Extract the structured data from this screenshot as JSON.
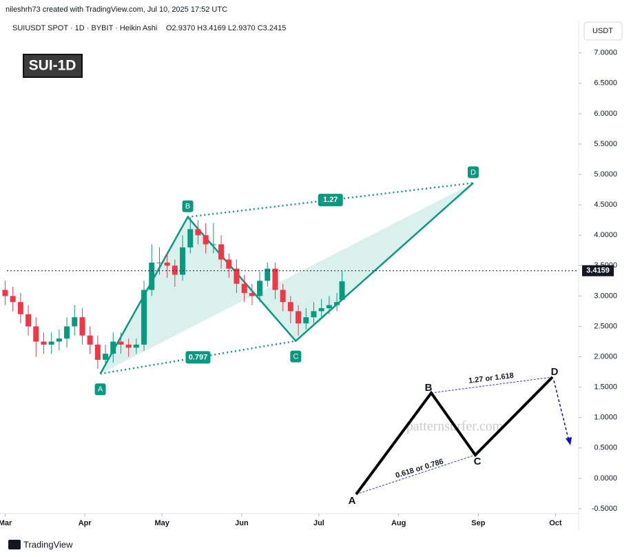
{
  "header": {
    "byline": "nileshrh73 created with TradingView.com, Jul 10, 2025 17:52 UTC",
    "symbol": "SUIUSDT SPOT · 1D · BYBIT · Heikin Ashi",
    "ohlc": "O2.9370 H3.4169 L2.9370 C3.2415",
    "currency": "USDT"
  },
  "chart_data": {
    "type": "candlestick",
    "title": "SUI-1D",
    "up_color": "#089981",
    "down_color": "#f23645",
    "grid": false,
    "x": [
      0,
      3,
      6,
      9,
      12,
      15,
      18,
      21,
      24,
      27,
      30,
      33,
      36,
      39,
      42,
      45,
      48,
      51,
      54,
      57,
      60,
      63,
      66,
      69,
      72,
      75,
      78,
      81,
      84,
      87,
      90,
      93,
      96,
      99,
      102,
      105,
      108,
      111,
      114,
      117,
      120,
      123,
      126,
      129,
      131
    ],
    "open": [
      3.1,
      3.0,
      2.9,
      2.7,
      2.5,
      2.25,
      2.2,
      2.25,
      2.3,
      2.5,
      2.65,
      2.35,
      2.2,
      1.95,
      2.05,
      2.25,
      2.2,
      2.15,
      2.2,
      3.1,
      3.55,
      3.55,
      3.5,
      3.35,
      3.8,
      4.1,
      4.0,
      3.85,
      3.85,
      3.6,
      3.45,
      3.2,
      3.05,
      3.0,
      3.25,
      3.45,
      3.1,
      2.9,
      2.75,
      2.55,
      2.65,
      2.75,
      2.8,
      2.85,
      2.937
    ],
    "high": [
      3.25,
      3.15,
      3.05,
      2.85,
      2.65,
      2.4,
      2.4,
      2.45,
      2.65,
      2.85,
      2.8,
      2.5,
      2.35,
      2.2,
      2.4,
      2.4,
      2.3,
      2.3,
      3.25,
      3.85,
      3.8,
      3.7,
      3.6,
      4.0,
      4.3,
      4.25,
      4.2,
      4.2,
      4.0,
      3.7,
      3.6,
      3.35,
      3.2,
      3.4,
      3.55,
      3.55,
      3.2,
      3.0,
      2.85,
      2.8,
      2.9,
      2.95,
      3.0,
      3.05,
      3.4169
    ],
    "low": [
      2.85,
      2.75,
      2.55,
      2.35,
      2.0,
      2.05,
      2.05,
      2.1,
      2.15,
      2.35,
      2.2,
      2.05,
      1.8,
      1.85,
      1.9,
      2.05,
      2.0,
      2.05,
      2.1,
      3.0,
      3.35,
      3.3,
      3.15,
      3.25,
      3.7,
      3.85,
      3.7,
      3.7,
      3.45,
      3.3,
      3.05,
      2.9,
      2.85,
      2.9,
      3.15,
      2.95,
      2.75,
      2.55,
      2.35,
      2.45,
      2.55,
      2.65,
      2.7,
      2.75,
      2.937
    ],
    "close": [
      3.0,
      2.9,
      2.7,
      2.5,
      2.25,
      2.2,
      2.25,
      2.3,
      2.5,
      2.65,
      2.35,
      2.2,
      1.95,
      2.05,
      2.25,
      2.2,
      2.15,
      2.2,
      3.1,
      3.55,
      3.55,
      3.5,
      3.35,
      3.8,
      4.1,
      4.0,
      3.85,
      3.85,
      3.6,
      3.45,
      3.2,
      3.05,
      3.0,
      3.25,
      3.45,
      3.1,
      2.9,
      2.75,
      2.55,
      2.65,
      2.75,
      2.8,
      2.85,
      2.9,
      3.2415
    ],
    "last_price": 3.4159,
    "xlim": [
      -2,
      223
    ],
    "xticks": [
      {
        "value": 0,
        "label": "Mar"
      },
      {
        "value": 31,
        "label": "Apr"
      },
      {
        "value": 61,
        "label": "May"
      },
      {
        "value": 92,
        "label": "Jun"
      },
      {
        "value": 122,
        "label": "Jul"
      },
      {
        "value": 153,
        "label": "Aug"
      },
      {
        "value": 184,
        "label": "Sep"
      },
      {
        "value": 214,
        "label": "Oct"
      }
    ],
    "ylim": [
      -0.58,
      7.53
    ],
    "yticks": [
      {
        "value": -0.5,
        "label": "-0.5000"
      },
      {
        "value": 0,
        "label": "0.0000"
      },
      {
        "value": 0.5,
        "label": "0.5000"
      },
      {
        "value": 1,
        "label": "1.0000"
      },
      {
        "value": 1.5,
        "label": "1.5000"
      },
      {
        "value": 2,
        "label": "2.0000"
      },
      {
        "value": 2.5,
        "label": "2.5000"
      },
      {
        "value": 3,
        "label": "3.0000"
      },
      {
        "value": 3.5,
        "label": "3.5000"
      },
      {
        "value": 4,
        "label": "4.0000"
      },
      {
        "value": 4.5,
        "label": "4.5000"
      },
      {
        "value": 5,
        "label": "5.0000"
      },
      {
        "value": 5.5,
        "label": "5.5000"
      },
      {
        "value": 6,
        "label": "6.0000"
      },
      {
        "value": 6.5,
        "label": "6.5000"
      },
      {
        "value": 7,
        "label": "7.0000"
      }
    ],
    "pattern": {
      "color": "#089981",
      "points": [
        {
          "label": "A",
          "x": 37,
          "y": 1.72
        },
        {
          "label": "B",
          "x": 71,
          "y": 4.3
        },
        {
          "label": "C",
          "x": 113,
          "y": 2.26
        },
        {
          "label": "D",
          "x": 182,
          "y": 4.86
        }
      ],
      "ratio_bd": "1.27",
      "ratio_ac": "0.797"
    }
  },
  "schematic": {
    "points": [
      "A",
      "B",
      "C",
      "D"
    ],
    "upper_label": "1.27 or 1.618",
    "lower_label": "0.618 or 0.786",
    "watermark": "patternsurfer.com"
  },
  "footer": {
    "brand": "TradingView"
  }
}
